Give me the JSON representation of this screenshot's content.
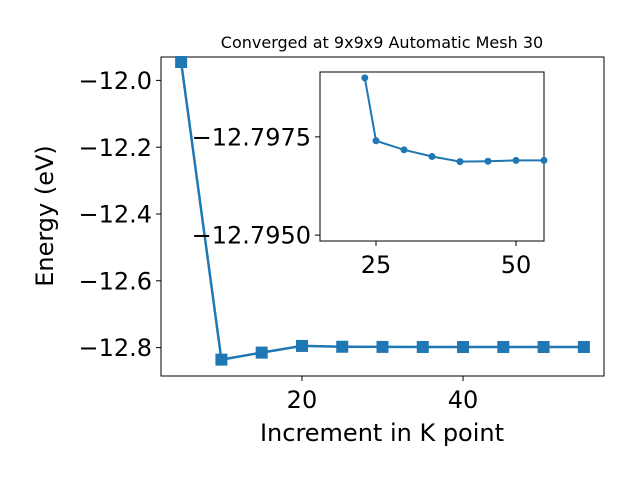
{
  "chart_data": [
    {
      "type": "line",
      "title": "Converged at 9x9x9 Automatic Mesh 30",
      "xlabel": "Increment in K point",
      "ylabel": "Energy (eV)",
      "xlim": [
        2.5,
        57.5
      ],
      "ylim": [
        -12.885,
        -11.93
      ],
      "xticks": [
        20,
        40
      ],
      "xtick_labels": [
        "20",
        "40"
      ],
      "yticks": [
        -12.0,
        -12.2,
        -12.4,
        -12.6,
        -12.8
      ],
      "ytick_labels": [
        "−12.0",
        "−12.2",
        "−12.4",
        "−12.6",
        "−12.8"
      ],
      "marker": "square",
      "grid": false,
      "color": "#1f77b4",
      "series": [
        {
          "x": [
            5,
            10,
            15,
            20,
            25,
            30,
            35,
            40,
            45,
            50,
            55
          ],
          "y": [
            -11.945,
            -12.836,
            -12.815,
            -12.795,
            -12.7974,
            -12.7979,
            -12.7981,
            -12.7982,
            -12.7982,
            -12.7982,
            -12.7982
          ]
        }
      ]
    },
    {
      "type": "line",
      "title": "",
      "inset": true,
      "xlim": [
        15,
        55
      ],
      "ylim": [
        -12.79485,
        -12.79915
      ],
      "xticks": [
        25,
        50
      ],
      "xtick_labels": [
        "25",
        "50"
      ],
      "yticks": [
        -12.7975,
        -12.795
      ],
      "ytick_labels": [
        "−12.7975",
        "−12.7950"
      ],
      "marker": "circle",
      "grid": false,
      "color": "#1f77b4",
      "series": [
        {
          "x": [
            23,
            25,
            30,
            35,
            40,
            45,
            50,
            55
          ],
          "y": [
            -12.799,
            -12.7974,
            -12.79717,
            -12.797,
            -12.79687,
            -12.79688,
            -12.7969,
            -12.7969
          ]
        }
      ]
    }
  ]
}
